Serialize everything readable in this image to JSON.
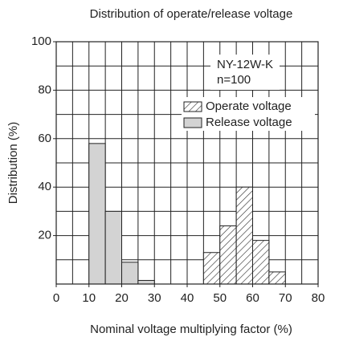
{
  "chart_data": {
    "type": "histogram",
    "title": "Distribution of operate/release voltage",
    "xlabel": "Nominal voltage multiplying factor (%)",
    "ylabel": "Distribution (%)",
    "annotations": [
      "NY-12W-K",
      "n=100"
    ],
    "series": [
      {
        "name": "Operate voltage",
        "color": "#ffffff",
        "pattern": "hatch",
        "bins": [
          45,
          50,
          55,
          60,
          65,
          70
        ],
        "values": [
          13,
          24,
          40,
          18,
          5
        ]
      },
      {
        "name": "Release voltage",
        "color": "#d3d3d3",
        "pattern": "solid",
        "bins": [
          10,
          15,
          20,
          25,
          30
        ],
        "values": [
          58,
          30,
          9,
          1.5
        ]
      }
    ],
    "xlim": [
      0,
      80
    ],
    "ylim": [
      0,
      100
    ],
    "xticks": [
      0,
      10,
      20,
      30,
      40,
      50,
      60,
      70,
      80
    ],
    "yticks": [
      20,
      40,
      60,
      80,
      100
    ],
    "xgrid": [
      5,
      10,
      15,
      20,
      25,
      30,
      35,
      40,
      45,
      50,
      55,
      60,
      65,
      70,
      75
    ],
    "ygrid": [
      10,
      20,
      30,
      40,
      50,
      60,
      70,
      80,
      90
    ],
    "grid": true
  }
}
